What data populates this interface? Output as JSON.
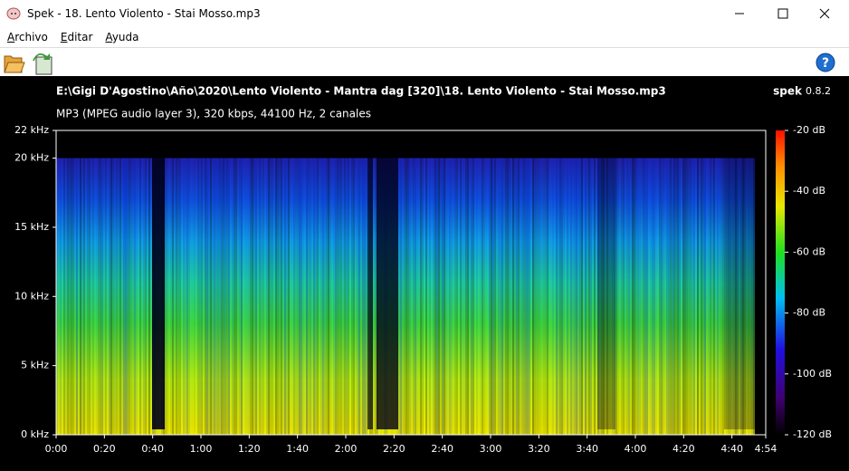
{
  "window": {
    "title": "Spek - 18. Lento Violento - Stai Mosso.mp3"
  },
  "menu": [
    "Archivo",
    "Editar",
    "Ayuda"
  ],
  "file": {
    "path": "E:\\Gigi D'Agostino\\Año\\2020\\Lento Violento - Mantra dag [320]\\18. Lento Violento - Stai Mosso.mp3",
    "info": "MP3 (MPEG audio layer 3), 320 kbps, 44100 Hz, 2 canales"
  },
  "app": {
    "name": "spek",
    "version": "0.8.2"
  },
  "chart_data": {
    "type": "spectrogram",
    "xlim": [
      0,
      294
    ],
    "xticks": [
      {
        "value": 0,
        "label": "0:00"
      },
      {
        "value": 20,
        "label": "0:20"
      },
      {
        "value": 40,
        "label": "0:40"
      },
      {
        "value": 60,
        "label": "1:00"
      },
      {
        "value": 80,
        "label": "1:20"
      },
      {
        "value": 100,
        "label": "1:40"
      },
      {
        "value": 120,
        "label": "2:00"
      },
      {
        "value": 140,
        "label": "2:20"
      },
      {
        "value": 160,
        "label": "2:40"
      },
      {
        "value": 180,
        "label": "3:00"
      },
      {
        "value": 200,
        "label": "3:20"
      },
      {
        "value": 220,
        "label": "3:40"
      },
      {
        "value": 240,
        "label": "4:00"
      },
      {
        "value": 260,
        "label": "4:20"
      },
      {
        "value": 280,
        "label": "4:40"
      },
      {
        "value": 294,
        "label": "4:54"
      }
    ],
    "ylim": [
      0,
      22
    ],
    "yticks": [
      {
        "value": 0,
        "label": "0 kHz"
      },
      {
        "value": 5,
        "label": "5 kHz"
      },
      {
        "value": 10,
        "label": "10 kHz"
      },
      {
        "value": 15,
        "label": "15 kHz"
      },
      {
        "value": 20,
        "label": "20 kHz"
      },
      {
        "value": 22,
        "label": "22 kHz"
      }
    ],
    "colorbar": {
      "lim": [
        -120,
        -20
      ],
      "ticks": [
        {
          "value": -20,
          "label": "-20 dB"
        },
        {
          "value": -40,
          "label": "-40 dB"
        },
        {
          "value": -60,
          "label": "-60 dB"
        },
        {
          "value": -80,
          "label": "-80 dB"
        },
        {
          "value": -100,
          "label": "-100 dB"
        },
        {
          "value": -120,
          "label": "-120 dB"
        }
      ]
    }
  }
}
